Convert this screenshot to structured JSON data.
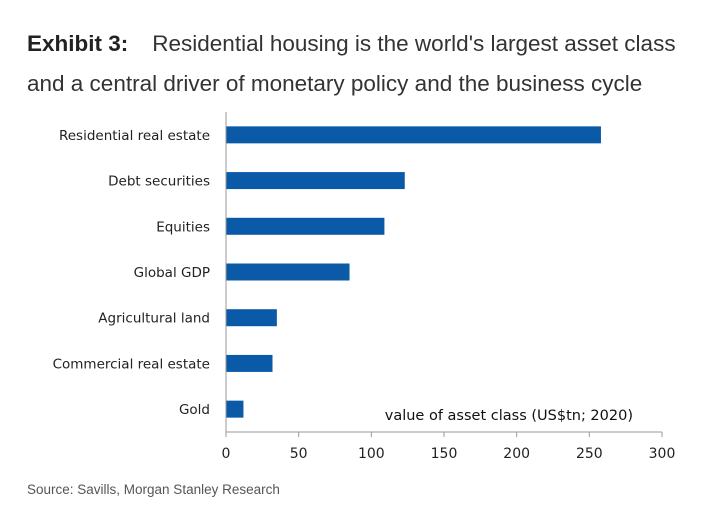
{
  "header": {
    "label": "Exhibit 3:",
    "title": "Residential housing is the world's largest asset class and a central driver of monetary policy and the business cycle"
  },
  "source": "Source: Savills, Morgan Stanley Research",
  "colors": {
    "bar": "#0B5AA8",
    "axis": "#9a9a9a"
  },
  "chart_data": {
    "type": "bar",
    "orientation": "horizontal",
    "categories": [
      "Residential real estate",
      "Debt securities",
      "Equities",
      "Global GDP",
      "Agricultural land",
      "Commercial real estate",
      "Gold"
    ],
    "values": [
      258,
      123,
      109,
      85,
      35,
      32,
      12
    ],
    "xlim": [
      0,
      300
    ],
    "xticks": [
      0,
      50,
      100,
      150,
      200,
      250,
      300
    ],
    "annotation": "value of asset class (US$tn; 2020)",
    "grid": false
  }
}
